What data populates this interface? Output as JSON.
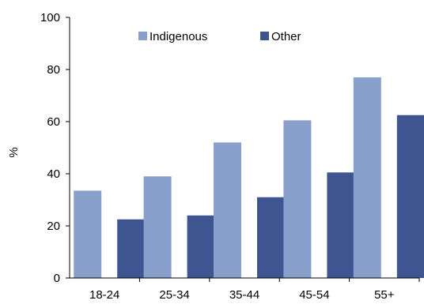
{
  "chart_data": {
    "type": "bar",
    "title": "",
    "xlabel": "",
    "ylabel": "%",
    "ylim": [
      0,
      100
    ],
    "yticks": [
      0,
      20,
      40,
      60,
      80,
      100
    ],
    "grid": false,
    "legend_position": "top",
    "categories": [
      "18-24",
      "25-34",
      "35-44",
      "45-54",
      "55+"
    ],
    "series": [
      {
        "name": "Indigenous",
        "color": "#8aa0cc",
        "values": [
          33.5,
          39,
          52,
          60.5,
          77
        ]
      },
      {
        "name": "Other",
        "color": "#3f5592",
        "values": [
          22.5,
          24,
          31,
          40.5,
          62.5
        ]
      }
    ]
  }
}
